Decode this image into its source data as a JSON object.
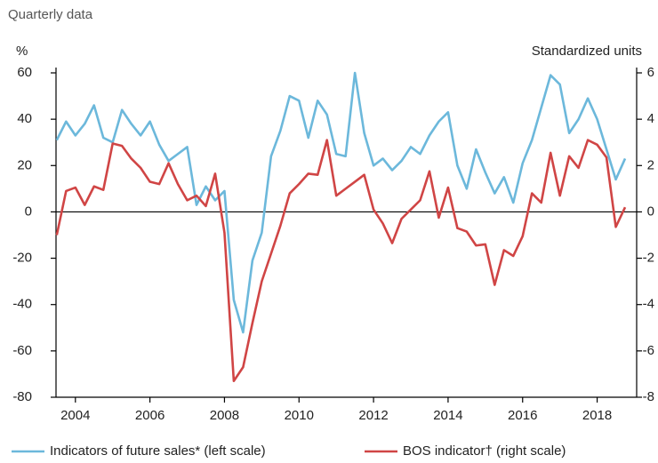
{
  "chart_data": {
    "type": "line",
    "title": "Quarterly data",
    "y_label": "%",
    "y2_label": "Standardized units",
    "x": [
      2004,
      2004.25,
      2004.5,
      2004.75,
      2005,
      2005.25,
      2005.5,
      2005.75,
      2006,
      2006.25,
      2006.5,
      2006.75,
      2007,
      2007.25,
      2007.5,
      2007.75,
      2008,
      2008.25,
      2008.5,
      2008.75,
      2009,
      2009.25,
      2009.5,
      2009.75,
      2010,
      2010.25,
      2010.5,
      2010.75,
      2011,
      2011.25,
      2011.5,
      2011.75,
      2012,
      2012.25,
      2012.5,
      2012.75,
      2013,
      2013.25,
      2013.5,
      2013.75,
      2014,
      2014.25,
      2014.5,
      2014.75,
      2015,
      2015.25,
      2015.5,
      2015.75,
      2016,
      2016.25,
      2016.5,
      2016.75,
      2017,
      2017.25,
      2017.5,
      2017.75,
      2018,
      2018.25,
      2018.5,
      2018.75,
      2019,
      2019.25
    ],
    "xlim": [
      2003.98,
      2019.56
    ],
    "xticks": [
      {
        "value": 2004.5,
        "label": "2004"
      },
      {
        "value": 2006.5,
        "label": "2006"
      },
      {
        "value": 2008.5,
        "label": "2008"
      },
      {
        "value": 2010.5,
        "label": "2010"
      },
      {
        "value": 2012.5,
        "label": "2012"
      },
      {
        "value": 2014.5,
        "label": "2014"
      },
      {
        "value": 2016.5,
        "label": "2016"
      },
      {
        "value": 2018.5,
        "label": "2018"
      }
    ],
    "ylim": [
      -80,
      60
    ],
    "yticks": [
      -80,
      -60,
      -40,
      -20,
      0,
      20,
      40,
      60
    ],
    "y2lim": [
      -8,
      6
    ],
    "y2ticks": [
      -8,
      -6,
      -4,
      -2,
      0,
      2,
      4,
      6
    ],
    "series": [
      {
        "name": "Indicators of future sales* (left scale)",
        "color": "#6cb8db",
        "axis": "y",
        "values": [
          31,
          39,
          33,
          38,
          46,
          32,
          30,
          44,
          38,
          33,
          39,
          29,
          22,
          25,
          28,
          3,
          11,
          5,
          9,
          -38,
          -52,
          -21,
          -9,
          24,
          35,
          50,
          48,
          32,
          48,
          42,
          25,
          24,
          60,
          34,
          20,
          23,
          18,
          22,
          28,
          25,
          33,
          39,
          43,
          20,
          10,
          27,
          17,
          8,
          15,
          4,
          21,
          31,
          45,
          59,
          55,
          34,
          40,
          49,
          40,
          27,
          14,
          23
        ]
      },
      {
        "name": "BOS indicator† (right scale)",
        "color": "#d04545",
        "axis": "y2",
        "values": [
          -1.0,
          0.9,
          1.05,
          0.3,
          1.1,
          0.95,
          2.95,
          2.85,
          2.3,
          1.9,
          1.3,
          1.2,
          2.1,
          1.2,
          0.5,
          0.7,
          0.25,
          1.65,
          -0.9,
          -7.3,
          -6.7,
          -4.8,
          -3.0,
          -1.8,
          -0.6,
          0.8,
          1.2,
          1.65,
          1.6,
          3.1,
          0.7,
          1.0,
          1.3,
          1.6,
          0.1,
          -0.5,
          -1.35,
          -0.3,
          0.1,
          0.5,
          1.75,
          -0.25,
          1.05,
          -0.7,
          -0.85,
          -1.45,
          -1.4,
          -3.15,
          -1.65,
          -1.9,
          -1.05,
          0.8,
          0.4,
          2.55,
          0.7,
          2.4,
          1.9,
          3.1,
          2.9,
          2.35,
          -0.65,
          0.2
        ]
      }
    ]
  }
}
